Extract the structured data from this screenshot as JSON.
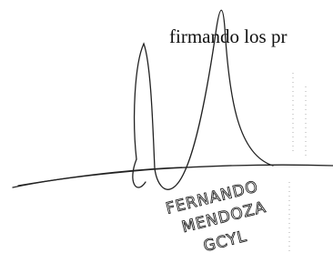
{
  "body_text": "firmando los pr",
  "signature": {
    "handwritten_lines": [
      "FERNANDO",
      "MENDOZA",
      "GCYL"
    ]
  }
}
